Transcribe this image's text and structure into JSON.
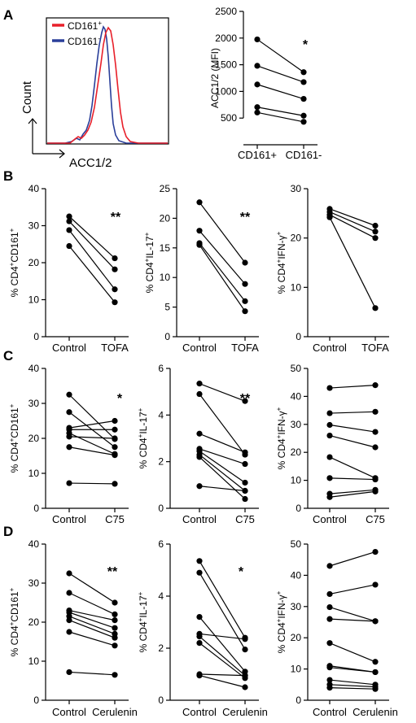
{
  "panel_letters": [
    "A",
    "B",
    "C",
    "D"
  ],
  "histogram": {
    "legend": [
      {
        "name": "CD161",
        "sup": "+",
        "color": "#e8202a"
      },
      {
        "name": "CD161",
        "sup": "-",
        "color": "#2a3f9a"
      }
    ],
    "ylabel": "Count",
    "xlabel": "ACC1/2"
  },
  "chart_data": [
    {
      "id": "A_right",
      "type": "line",
      "categories": [
        "CD161+",
        "CD161-"
      ],
      "ylabel": "ACC1/2 (MFI)",
      "ylabel_sup": "",
      "ylim": [
        0,
        2500
      ],
      "yticks": [
        500,
        1000,
        1500,
        2000,
        2500
      ],
      "significance": "*",
      "pairs": [
        [
          1975,
          1360
        ],
        [
          1480,
          1175
        ],
        [
          1130,
          860
        ],
        [
          705,
          545
        ],
        [
          605,
          430
        ]
      ]
    },
    {
      "id": "B1",
      "type": "line",
      "categories": [
        "Control",
        "TOFA"
      ],
      "ylabel": "% CD4",
      "ylabel_sup": "+",
      "ylabel2": "CD161",
      "ylabel2_sup": "+",
      "ylim": [
        0,
        40
      ],
      "yticks": [
        0,
        10,
        20,
        30,
        40
      ],
      "significance": "**",
      "pairs": [
        [
          32.5,
          21.2
        ],
        [
          31.2,
          18.2
        ],
        [
          28.8,
          12.8
        ],
        [
          24.5,
          9.3
        ]
      ]
    },
    {
      "id": "B2",
      "type": "line",
      "categories": [
        "Control",
        "TOFA"
      ],
      "ylabel": "% CD4",
      "ylabel_sup": "+",
      "ylabel2": "IL-17",
      "ylabel2_sup": "+",
      "ylim": [
        0,
        25
      ],
      "yticks": [
        0,
        5,
        10,
        15,
        20,
        25
      ],
      "significance": "**",
      "pairs": [
        [
          22.7,
          12.5
        ],
        [
          17.9,
          8.9
        ],
        [
          15.8,
          6.0
        ],
        [
          15.5,
          4.3
        ]
      ]
    },
    {
      "id": "B3",
      "type": "line",
      "categories": [
        "Control",
        "TOFA"
      ],
      "ylabel": "% CD4",
      "ylabel_sup": "+",
      "ylabel2": "IFN-γ",
      "ylabel2_sup": "+",
      "ylim": [
        0,
        30
      ],
      "yticks": [
        0,
        10,
        20,
        30
      ],
      "significance": "",
      "pairs": [
        [
          25.9,
          22.5
        ],
        [
          25.3,
          21.3
        ],
        [
          24.7,
          20.0
        ],
        [
          24.2,
          5.8
        ]
      ]
    },
    {
      "id": "C1",
      "type": "line",
      "categories": [
        "Control",
        "C75"
      ],
      "ylabel": "% CD4",
      "ylabel_sup": "+",
      "ylabel2": "CD161",
      "ylabel2_sup": "+",
      "ylim": [
        0,
        40
      ],
      "yticks": [
        0,
        10,
        20,
        30,
        40
      ],
      "significance": "*",
      "pairs": [
        [
          32.5,
          19.8
        ],
        [
          27.5,
          17.5
        ],
        [
          23.0,
          25.0
        ],
        [
          22.5,
          22.5
        ],
        [
          21.5,
          15.5
        ],
        [
          20.5,
          20.0
        ],
        [
          17.5,
          15.2
        ],
        [
          7.2,
          7.0
        ]
      ]
    },
    {
      "id": "C2",
      "type": "line",
      "categories": [
        "Control",
        "C75"
      ],
      "ylabel": "% CD4",
      "ylabel_sup": "+",
      "ylabel2": "IL-17",
      "ylabel2_sup": "+",
      "ylim": [
        0,
        6
      ],
      "yticks": [
        0,
        2,
        4,
        6
      ],
      "significance": "**",
      "pairs": [
        [
          5.35,
          4.6
        ],
        [
          4.9,
          2.3
        ],
        [
          3.2,
          2.4
        ],
        [
          2.55,
          1.9
        ],
        [
          2.45,
          1.1
        ],
        [
          2.3,
          0.75
        ],
        [
          2.2,
          0.4
        ],
        [
          0.95,
          0.75
        ]
      ]
    },
    {
      "id": "C3",
      "type": "line",
      "categories": [
        "Control",
        "C75"
      ],
      "ylabel": "% CD4",
      "ylabel_sup": "+",
      "ylabel2": "IFN-γ",
      "ylabel2_sup": "+",
      "ylim": [
        0,
        50
      ],
      "yticks": [
        0,
        10,
        20,
        30,
        40,
        50
      ],
      "significance": "",
      "pairs": [
        [
          43.0,
          44.0
        ],
        [
          34.0,
          34.5
        ],
        [
          29.8,
          27.3
        ],
        [
          26.0,
          21.8
        ],
        [
          18.3,
          10.8
        ],
        [
          10.8,
          10.3
        ],
        [
          5.2,
          6.6
        ],
        [
          4.0,
          6.0
        ]
      ]
    },
    {
      "id": "D1",
      "type": "line",
      "categories": [
        "Control",
        "Cerulenin"
      ],
      "ylabel": "% CD4",
      "ylabel_sup": "+",
      "ylabel2": "CD161",
      "ylabel2_sup": "+",
      "ylim": [
        0,
        40
      ],
      "yticks": [
        0,
        10,
        20,
        30,
        40
      ],
      "significance": "**",
      "pairs": [
        [
          32.5,
          25.0
        ],
        [
          27.5,
          22.0
        ],
        [
          23.0,
          20.5
        ],
        [
          22.5,
          18.5
        ],
        [
          21.5,
          17.0
        ],
        [
          20.5,
          16.0
        ],
        [
          17.5,
          14.0
        ],
        [
          7.2,
          6.5
        ]
      ]
    },
    {
      "id": "D2",
      "type": "line",
      "categories": [
        "Control",
        "Cerulenin"
      ],
      "ylabel": "% CD4",
      "ylabel_sup": "+",
      "ylabel2": "IL-17",
      "ylabel2_sup": "+",
      "ylim": [
        0,
        6
      ],
      "yticks": [
        0,
        2,
        4,
        6
      ],
      "significance": "*",
      "pairs": [
        [
          5.35,
          2.4
        ],
        [
          4.9,
          1.95
        ],
        [
          3.2,
          1.1
        ],
        [
          2.55,
          2.35
        ],
        [
          2.45,
          0.95
        ],
        [
          2.2,
          0.85
        ],
        [
          1.0,
          0.95
        ],
        [
          0.95,
          0.5
        ]
      ]
    },
    {
      "id": "D3",
      "type": "line",
      "categories": [
        "Control",
        "Cerulenin"
      ],
      "ylabel": "% CD4",
      "ylabel_sup": "+",
      "ylabel2": "IFN-γ",
      "ylabel2_sup": "+",
      "ylim": [
        0,
        50
      ],
      "yticks": [
        0,
        10,
        20,
        30,
        40,
        50
      ],
      "significance": "",
      "pairs": [
        [
          43.0,
          47.5
        ],
        [
          34.0,
          37.0
        ],
        [
          29.8,
          25.3
        ],
        [
          26.0,
          25.3
        ],
        [
          18.3,
          12.3
        ],
        [
          11.0,
          9.0
        ],
        [
          10.5,
          9.0
        ],
        [
          6.5,
          5.0
        ],
        [
          5.0,
          4.3
        ],
        [
          4.0,
          3.6
        ]
      ]
    }
  ]
}
